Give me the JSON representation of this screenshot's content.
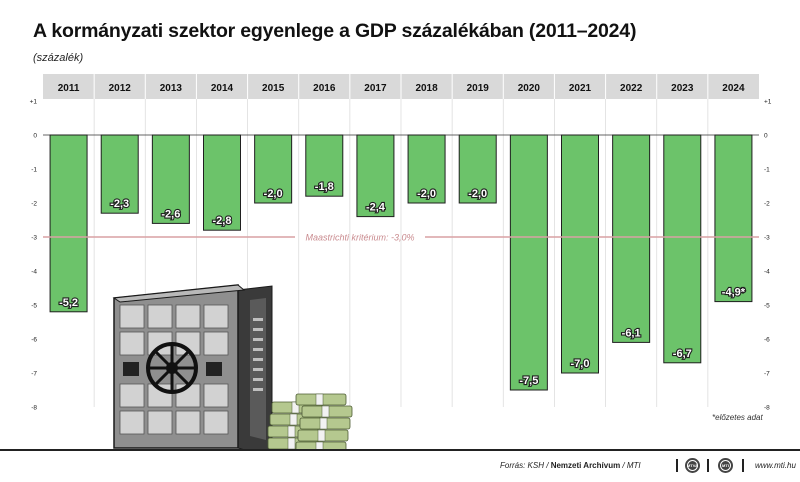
{
  "title": "A kormányzati szektor egyenlege a GDP százalékában (2011–2024)",
  "subtitle": "(százalék)",
  "chart_data": {
    "type": "bar",
    "title": "A kormányzati szektor egyenlege a GDP százalékában (2011–2024)",
    "ylabel": "(százalék)",
    "xlabel": "",
    "categories": [
      "2011",
      "2012",
      "2013",
      "2014",
      "2015",
      "2016",
      "2017",
      "2018",
      "2019",
      "2020",
      "2021",
      "2022",
      "2023",
      "2024"
    ],
    "values": [
      -5.2,
      -2.3,
      -2.6,
      -2.8,
      -2.0,
      -1.8,
      -2.4,
      -2.0,
      -2.0,
      -7.5,
      -7.0,
      -6.1,
      -6.7,
      -4.9
    ],
    "value_labels": [
      "-5,2",
      "-2,3",
      "-2,6",
      "-2,8",
      "-2,0",
      "-1,8",
      "-2,4",
      "-2,0",
      "-2,0",
      "-7,5",
      "-7,0",
      "-6,1",
      "-6,7",
      "-4,9*"
    ],
    "ylim": [
      -8,
      1
    ],
    "yticks": [
      1,
      0,
      -1,
      -2,
      -3,
      -4,
      -5,
      -6,
      -7,
      -8
    ],
    "ytick_labels": [
      "+1",
      "0",
      "-1",
      "-2",
      "-3",
      "-4",
      "-5",
      "-6",
      "-7",
      "-8"
    ],
    "reference_line": {
      "value": -3.0,
      "label": "Maastrichti kritérium: -3,0%"
    },
    "grid": true,
    "legend": "none"
  },
  "footnote": "*előzetes adat",
  "footer": {
    "source_prefix": "Forrás: KSH / ",
    "source_archive": "Nemzeti Archívum",
    "source_suffix": " / MTI",
    "logo_mti": "MTVA",
    "logo_na": "MTI",
    "website": "www.mti.hu"
  },
  "colors": {
    "bar_fill": "#6cc36a",
    "bar_stroke": "#1f1f1f",
    "reference_line": "#d9a1a4",
    "reference_text": "#c98a8e",
    "header_band": "#d9d9d9",
    "grid": "#dddddd"
  },
  "illustration": {
    "subject": "bank-vault-safe-with-money-stacks"
  }
}
